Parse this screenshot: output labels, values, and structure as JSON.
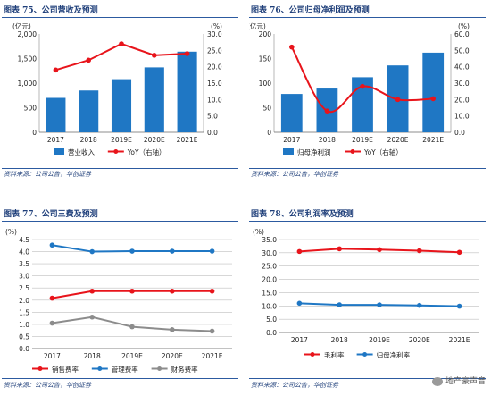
{
  "source_text": "资料来源：公司公告，华创证券",
  "watermark_text": "地产豪声音",
  "chart_data": [
    {
      "type": "bar+line",
      "title": "图表 75、公司营收及预测",
      "left_unit": "(亿元)",
      "right_unit": "(%)",
      "categories": [
        "2017",
        "2018",
        "2019E",
        "2020E",
        "2021E"
      ],
      "ylim_left": [
        0,
        2000
      ],
      "yticks_left": [
        0,
        500,
        1000,
        1500,
        2000
      ],
      "yticks_left_labels": [
        "0",
        "500",
        "1,000",
        "1,500",
        "2,000"
      ],
      "ylim_right": [
        0,
        30
      ],
      "yticks_right": [
        0,
        5,
        10,
        15,
        20,
        25,
        30
      ],
      "yticks_right_labels": [
        "0.0",
        "5.0",
        "10.0",
        "15.0",
        "20.0",
        "25.0",
        "30.0"
      ],
      "series": [
        {
          "name": "营业收入",
          "kind": "bar",
          "axis": "left",
          "color": "#1f77c4",
          "values": [
            700,
            850,
            1080,
            1320,
            1640
          ]
        },
        {
          "name": "YoY（右轴）",
          "kind": "line",
          "axis": "right",
          "color": "#e8141b",
          "values": [
            19,
            22,
            27,
            23.5,
            24
          ]
        }
      ]
    },
    {
      "type": "bar+line",
      "title": "图表 76、公司归母净利润及预测",
      "left_unit": "(亿元)",
      "right_unit": "(%)",
      "categories": [
        "2017",
        "2018",
        "2019E",
        "2020E",
        "2021E"
      ],
      "ylim_left": [
        0,
        200
      ],
      "yticks_left": [
        0,
        50,
        100,
        150,
        200
      ],
      "yticks_left_labels": [
        "0",
        "50",
        "100",
        "150",
        "200"
      ],
      "ylim_right": [
        0,
        60
      ],
      "yticks_right": [
        0,
        10,
        20,
        30,
        40,
        50,
        60
      ],
      "yticks_right_labels": [
        "0.0",
        "10.0",
        "20.0",
        "30.0",
        "40.0",
        "50.0",
        "60.0"
      ],
      "series": [
        {
          "name": "归母净利润",
          "kind": "bar",
          "axis": "left",
          "color": "#1f77c4",
          "values": [
            78,
            89,
            112,
            136,
            162
          ]
        },
        {
          "name": "YoY（右轴）",
          "kind": "line",
          "axis": "right",
          "color": "#e8141b",
          "values": [
            52,
            13,
            28,
            20,
            20.5
          ]
        }
      ]
    },
    {
      "type": "line",
      "title": "图表 77、公司三费及预测",
      "left_unit": "(%)",
      "categories": [
        "2017",
        "2018",
        "2019E",
        "2020E",
        "2021E"
      ],
      "ylim_left": [
        0,
        4.5
      ],
      "yticks_left": [
        0,
        0.5,
        1,
        1.5,
        2,
        2.5,
        3,
        3.5,
        4,
        4.5
      ],
      "yticks_left_labels": [
        "0.0",
        "0.5",
        "1.0",
        "1.5",
        "2.0",
        "2.5",
        "3.0",
        "3.5",
        "4.0",
        "4.5"
      ],
      "series": [
        {
          "name": "销售费率",
          "kind": "line",
          "axis": "left",
          "color": "#e8141b",
          "values": [
            2.08,
            2.37,
            2.37,
            2.37,
            2.37
          ]
        },
        {
          "name": "管理费率",
          "kind": "line",
          "axis": "left",
          "color": "#1f77c4",
          "values": [
            4.27,
            4.0,
            4.02,
            4.02,
            4.02
          ]
        },
        {
          "name": "财务费率",
          "kind": "line",
          "axis": "left",
          "color": "#8c8c8c",
          "values": [
            1.05,
            1.3,
            0.9,
            0.78,
            0.72
          ]
        }
      ]
    },
    {
      "type": "line",
      "title": "图表 78、公司利润率及预测",
      "left_unit": "(%)",
      "categories": [
        "2017",
        "2018",
        "2019E",
        "2020E",
        "2021E"
      ],
      "ylim_left": [
        0,
        35
      ],
      "yticks_left": [
        0,
        5,
        10,
        15,
        20,
        25,
        30,
        35
      ],
      "yticks_left_labels": [
        "0.0",
        "5.0",
        "10.0",
        "15.0",
        "20.0",
        "25.0",
        "30.0",
        "35.0"
      ],
      "series": [
        {
          "name": "毛利率",
          "kind": "line",
          "axis": "left",
          "color": "#e8141b",
          "values": [
            30.5,
            31.5,
            31.2,
            30.8,
            30.2
          ]
        },
        {
          "name": "归母净利率",
          "kind": "line",
          "axis": "left",
          "color": "#1f77c4",
          "values": [
            11.0,
            10.4,
            10.4,
            10.2,
            9.9
          ]
        }
      ]
    }
  ]
}
